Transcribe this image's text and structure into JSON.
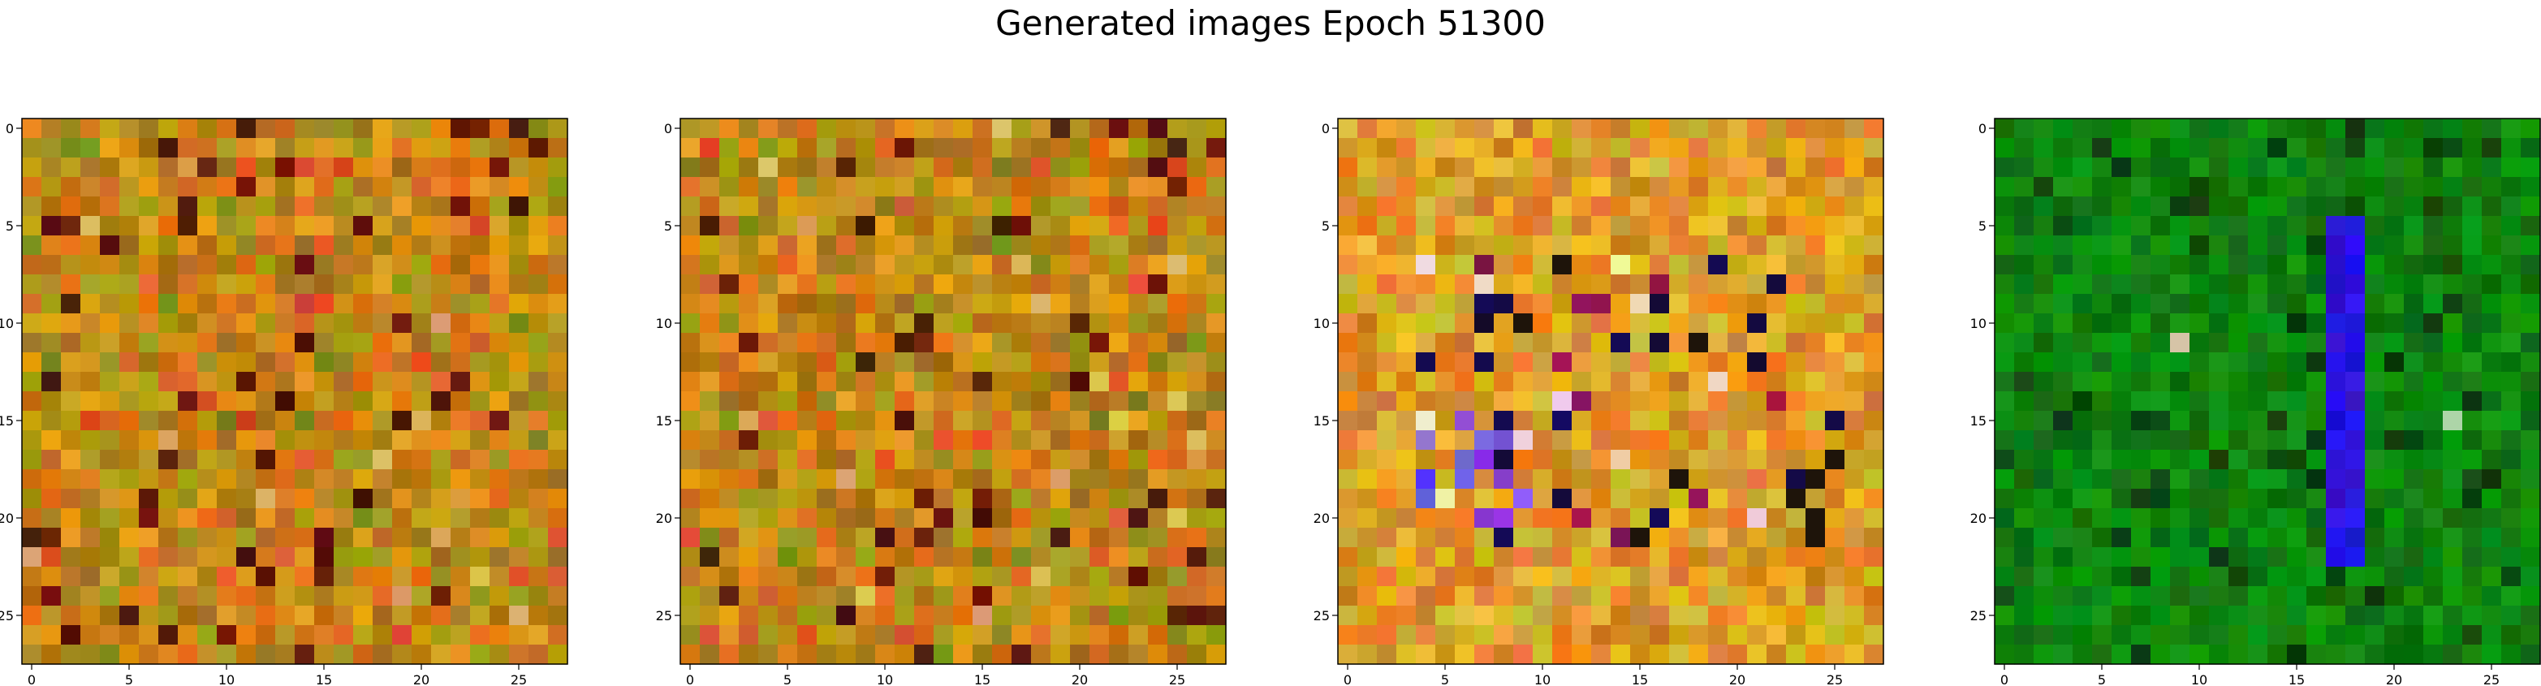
{
  "figure": {
    "title": "Generated images Epoch 51300"
  },
  "chart_data": [
    {
      "type": "heatmap",
      "name": "generated-image-1",
      "grid_size": 28,
      "palette": "warm",
      "xticks": [
        0,
        5,
        10,
        15,
        20,
        25
      ],
      "yticks": [
        0,
        5,
        10,
        15,
        20,
        25
      ],
      "xtick_labels": [
        "0",
        "5",
        "10",
        "15",
        "20",
        "25"
      ],
      "ytick_labels": [
        "0",
        "5",
        "10",
        "15",
        "20",
        "25"
      ],
      "xlim": [
        -0.5,
        27.5
      ],
      "ylim": [
        27.5,
        -0.5
      ]
    },
    {
      "type": "heatmap",
      "name": "generated-image-2",
      "grid_size": 28,
      "palette": "warm",
      "xticks": [
        0,
        5,
        10,
        15,
        20,
        25
      ],
      "yticks": [
        0,
        5,
        10,
        15,
        20,
        25
      ],
      "xtick_labels": [
        "0",
        "5",
        "10",
        "15",
        "20",
        "25"
      ],
      "ytick_labels": [
        "0",
        "5",
        "10",
        "15",
        "20",
        "25"
      ],
      "xlim": [
        -0.5,
        27.5
      ],
      "ylim": [
        27.5,
        -0.5
      ]
    },
    {
      "type": "heatmap",
      "name": "generated-image-3",
      "grid_size": 28,
      "palette": "vivid",
      "xticks": [
        0,
        5,
        10,
        15,
        20,
        25
      ],
      "yticks": [
        0,
        5,
        10,
        15,
        20,
        25
      ],
      "xtick_labels": [
        "0",
        "5",
        "10",
        "15",
        "20",
        "25"
      ],
      "ytick_labels": [
        "0",
        "5",
        "10",
        "15",
        "20",
        "25"
      ],
      "xlim": [
        -0.5,
        27.5
      ],
      "ylim": [
        27.5,
        -0.5
      ]
    },
    {
      "type": "heatmap",
      "name": "generated-image-4",
      "grid_size": 28,
      "palette": "green",
      "xticks": [
        0,
        5,
        10,
        15,
        20,
        25
      ],
      "yticks": [
        0,
        5,
        10,
        15,
        20,
        25
      ],
      "xtick_labels": [
        "0",
        "5",
        "10",
        "15",
        "20",
        "25"
      ],
      "ytick_labels": [
        "0",
        "5",
        "10",
        "15",
        "20",
        "25"
      ],
      "xlim": [
        -0.5,
        27.5
      ],
      "ylim": [
        27.5,
        -0.5
      ]
    }
  ]
}
